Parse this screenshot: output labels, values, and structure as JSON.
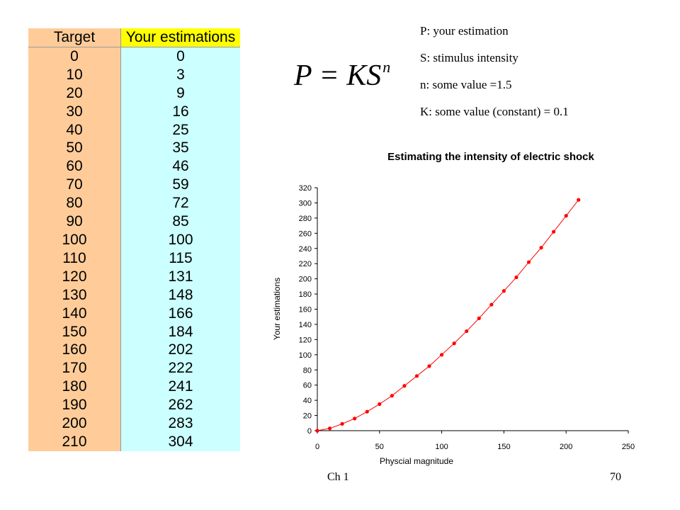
{
  "table": {
    "headers": [
      "Target",
      "Your estimations"
    ],
    "rows": [
      [
        "0",
        "0"
      ],
      [
        "10",
        "3"
      ],
      [
        "20",
        "9"
      ],
      [
        "30",
        "16"
      ],
      [
        "40",
        "25"
      ],
      [
        "50",
        "35"
      ],
      [
        "60",
        "46"
      ],
      [
        "70",
        "59"
      ],
      [
        "80",
        "72"
      ],
      [
        "90",
        "85"
      ],
      [
        "100",
        "100"
      ],
      [
        "110",
        "115"
      ],
      [
        "120",
        "131"
      ],
      [
        "130",
        "148"
      ],
      [
        "140",
        "166"
      ],
      [
        "150",
        "184"
      ],
      [
        "160",
        "202"
      ],
      [
        "170",
        "222"
      ],
      [
        "180",
        "241"
      ],
      [
        "190",
        "262"
      ],
      [
        "200",
        "283"
      ],
      [
        "210",
        "304"
      ]
    ]
  },
  "formula": {
    "lhs": "P = KS",
    "exponent": "n"
  },
  "notes": [
    "P: your estimation",
    "S: stimulus intensity",
    "n: some value =1.5",
    "K: some value (constant) = 0.1"
  ],
  "footer": {
    "left": "Ch 1",
    "right": "70"
  },
  "chart_data": {
    "type": "scatter",
    "title": "Estimating the intensity of electric shock",
    "xlabel": "Physcial magnitude",
    "ylabel": "Your estimations",
    "xlim": [
      0,
      250
    ],
    "ylim": [
      0,
      320
    ],
    "xticks": [
      0,
      50,
      100,
      150,
      200,
      250
    ],
    "yticks": [
      0,
      20,
      40,
      60,
      80,
      100,
      120,
      140,
      160,
      180,
      200,
      220,
      240,
      260,
      280,
      300,
      320
    ],
    "grid": false,
    "color": "#ff0000",
    "x": [
      0,
      10,
      20,
      30,
      40,
      50,
      60,
      70,
      80,
      90,
      100,
      110,
      120,
      130,
      140,
      150,
      160,
      170,
      180,
      190,
      200,
      210
    ],
    "y": [
      0,
      3,
      9,
      16,
      25,
      35,
      46,
      59,
      72,
      85,
      100,
      115,
      131,
      148,
      166,
      184,
      202,
      222,
      241,
      262,
      283,
      304
    ]
  }
}
